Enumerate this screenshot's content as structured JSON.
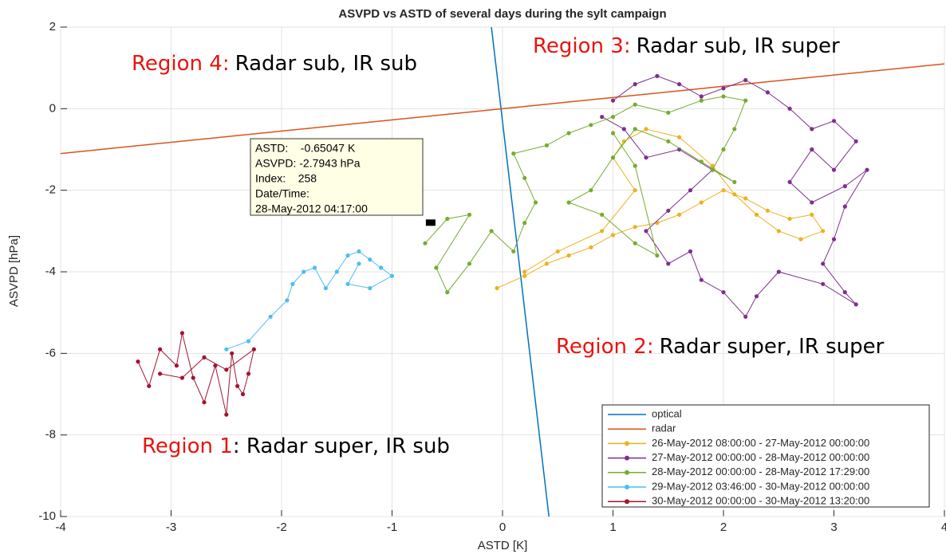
{
  "chart_data": {
    "type": "line",
    "title": "ASVPD vs ASTD of several days during the sylt campaign",
    "x_label": "ASTD [K]",
    "y_label": "ASVPD [hPa]",
    "xlim": [
      -4,
      4
    ],
    "ylim": [
      -10,
      2
    ],
    "xticks": [
      -4,
      -3,
      -2,
      -1,
      0,
      1,
      2,
      3,
      4
    ],
    "yticks": [
      -10,
      -8,
      -6,
      -4,
      -2,
      0,
      2
    ],
    "grid": true,
    "legend_position": "lower right",
    "series": [
      {
        "name": "optical",
        "color": "#0072BD",
        "marker": false,
        "x": [
          -0.1,
          0.42
        ],
        "values": [
          2,
          -10
        ]
      },
      {
        "name": "radar",
        "color": "#D95319",
        "marker": false,
        "x": [
          -4,
          4
        ],
        "values": [
          -1.1,
          1.1
        ]
      },
      {
        "name": "26-May-2012 08:00:00 - 27-May-2012 00:00:00",
        "color": "#EDB120",
        "marker": true,
        "x": [
          -0.05,
          0.2,
          0.4,
          0.6,
          0.8,
          1.0,
          1.2,
          1.4,
          1.6,
          1.8,
          2.0,
          2.2,
          2.4,
          2.6,
          2.8,
          2.9,
          2.7,
          2.5,
          2.3,
          2.1,
          1.9,
          1.6,
          1.3,
          1.1,
          1.0,
          1.2,
          0.9,
          0.5,
          0.2
        ],
        "values": [
          -4.4,
          -4.1,
          -3.8,
          -3.6,
          -3.4,
          -3.1,
          -2.9,
          -2.8,
          -2.6,
          -2.3,
          -2.0,
          -2.2,
          -2.5,
          -2.7,
          -2.6,
          -3.0,
          -3.2,
          -3.0,
          -2.6,
          -2.1,
          -1.4,
          -0.7,
          -0.5,
          -0.8,
          -1.2,
          -2.0,
          -3.0,
          -3.5,
          -4.0
        ]
      },
      {
        "name": "27-May-2012 00:00:00 - 28-May-2012 00:00:00",
        "color": "#7E2F8E",
        "marker": true,
        "x": [
          1.0,
          1.2,
          1.4,
          1.6,
          1.8,
          2.0,
          2.2,
          2.4,
          2.6,
          2.8,
          3.0,
          3.2,
          3.0,
          2.8,
          2.6,
          2.8,
          3.1,
          3.3,
          3.1,
          3.0,
          2.9,
          3.1,
          3.2,
          2.9,
          2.5,
          2.3,
          2.2,
          2.0,
          1.8,
          1.7,
          1.5,
          1.3,
          1.5,
          1.7,
          1.9,
          1.6,
          1.3,
          1.1,
          0.9
        ],
        "values": [
          0.2,
          0.6,
          0.8,
          0.6,
          0.3,
          0.5,
          0.7,
          0.4,
          0.0,
          -0.5,
          -0.3,
          -0.8,
          -1.5,
          -1.0,
          -1.8,
          -2.3,
          -1.9,
          -1.5,
          -2.4,
          -3.2,
          -3.8,
          -4.5,
          -4.8,
          -4.3,
          -4.0,
          -4.6,
          -5.1,
          -4.5,
          -4.2,
          -3.5,
          -3.8,
          -3.0,
          -2.5,
          -2.0,
          -1.5,
          -1.0,
          -1.2,
          -0.5,
          -0.2
        ]
      },
      {
        "name": "28-May-2012 00:00:00 - 28-May-2012 17:29:00",
        "color": "#77AC30",
        "marker": true,
        "x": [
          -0.7,
          -0.5,
          -0.3,
          -0.6,
          -0.5,
          -0.3,
          -0.1,
          0.1,
          0.2,
          0.3,
          0.2,
          0.1,
          0.4,
          0.6,
          0.8,
          1.0,
          1.2,
          1.5,
          1.8,
          2.0,
          2.2,
          2.1,
          2.0,
          1.9,
          2.1,
          1.8,
          1.5,
          1.2,
          1.0,
          0.8,
          0.6,
          0.9,
          1.2,
          1.4,
          1.2,
          1.0
        ],
        "values": [
          -3.3,
          -2.7,
          -2.6,
          -3.9,
          -4.5,
          -3.8,
          -3.0,
          -3.5,
          -2.8,
          -2.3,
          -1.7,
          -1.1,
          -0.9,
          -0.6,
          -0.4,
          -0.2,
          0.1,
          -0.1,
          0.2,
          0.3,
          0.2,
          -0.5,
          -1.0,
          -1.5,
          -1.8,
          -1.3,
          -0.8,
          -0.5,
          -1.2,
          -2.0,
          -2.3,
          -2.6,
          -3.3,
          -3.6,
          -1.4,
          -0.6
        ]
      },
      {
        "name": "29-May-2012 03:46:00 - 30-May-2012 00:00:00",
        "color": "#4DBEEE",
        "marker": true,
        "x": [
          -2.5,
          -2.3,
          -2.1,
          -1.95,
          -1.9,
          -1.8,
          -1.7,
          -1.6,
          -1.5,
          -1.4,
          -1.3,
          -1.2,
          -1.1,
          -1.0,
          -1.2,
          -1.4,
          -1.3
        ],
        "values": [
          -5.9,
          -5.7,
          -5.1,
          -4.7,
          -4.3,
          -4.0,
          -3.9,
          -4.4,
          -4.0,
          -3.6,
          -3.5,
          -3.7,
          -3.9,
          -4.1,
          -4.4,
          -4.3,
          -3.8
        ]
      },
      {
        "name": "30-May-2012 00:00:00 - 30-May-2012 13:20:00",
        "color": "#A2142F",
        "marker": true,
        "x": [
          -3.3,
          -3.2,
          -3.1,
          -2.95,
          -2.9,
          -2.8,
          -2.7,
          -2.6,
          -2.5,
          -2.45,
          -2.4,
          -2.35,
          -2.3,
          -2.25,
          -2.5,
          -2.7,
          -2.9,
          -3.1
        ],
        "values": [
          -6.2,
          -6.8,
          -5.9,
          -6.3,
          -5.5,
          -6.6,
          -7.2,
          -6.3,
          -7.5,
          -6.0,
          -6.8,
          -7.0,
          -6.5,
          -5.9,
          -6.4,
          -6.1,
          -6.6,
          -6.5
        ]
      }
    ],
    "annotations": [
      {
        "highlight": "Region 4:",
        "text": "Radar sub, IR sub"
      },
      {
        "highlight": "Region 3:",
        "text": "Radar sub, IR super"
      },
      {
        "highlight": "Region 2:",
        "text": "Radar super, IR super"
      },
      {
        "highlight": "Region 1",
        "text": ": Radar super, IR sub"
      }
    ],
    "datatip": {
      "x": -0.65047,
      "y": -2.7943,
      "lines": [
        "ASTD:    -0.65047 K",
        "ASVPD: -2.7943 hPa",
        "Index:    258",
        "Date/Time:",
        "28-May-2012 04:17:00"
      ]
    }
  }
}
